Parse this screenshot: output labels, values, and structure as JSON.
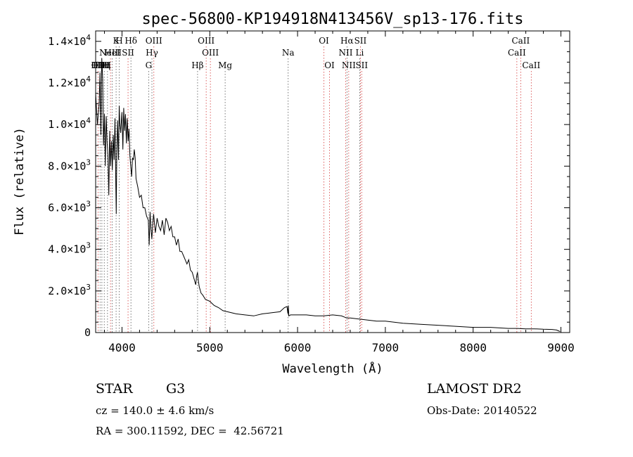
{
  "chart_data": {
    "type": "line",
    "title": "spec-56800-KP194918N413456V_sp13-176.fits",
    "xlabel": "Wavelength (Å)",
    "ylabel": "Flux (relative)",
    "xlim": [
      3700,
      9100
    ],
    "ylim": [
      0,
      14500
    ],
    "x_ticks": [
      4000,
      5000,
      6000,
      7000,
      8000,
      9000
    ],
    "y_ticks": [
      {
        "value": 0,
        "mant": "0",
        "exp": ""
      },
      {
        "value": 2000,
        "mant": "2.0×10",
        "exp": "3"
      },
      {
        "value": 4000,
        "mant": "4.0×10",
        "exp": "3"
      },
      {
        "value": 6000,
        "mant": "6.0×10",
        "exp": "3"
      },
      {
        "value": 8000,
        "mant": "8.0×10",
        "exp": "3"
      },
      {
        "value": 10000,
        "mant": "1.0×10",
        "exp": "4"
      },
      {
        "value": 12000,
        "mant": "1.2×10",
        "exp": "4"
      },
      {
        "value": 14000,
        "mant": "1.4×10",
        "exp": "4"
      }
    ],
    "grid": false,
    "series": [
      {
        "x": [
          3700,
          3720,
          3740,
          3750,
          3760,
          3770,
          3780,
          3790,
          3800,
          3810,
          3820,
          3830,
          3840,
          3850,
          3860,
          3870,
          3880,
          3890,
          3900,
          3910,
          3920,
          3930,
          3935,
          3940,
          3950,
          3960,
          3968,
          3975,
          3985,
          4000,
          4010,
          4020,
          4030,
          4040,
          4050,
          4060,
          4070,
          4080,
          4090,
          4100,
          4110,
          4120,
          4130,
          4140,
          4150,
          4160,
          4180,
          4200,
          4220,
          4240,
          4260,
          4280,
          4300,
          4310,
          4320,
          4330,
          4340,
          4350,
          4360,
          4380,
          4400,
          4420,
          4440,
          4460,
          4480,
          4500,
          4520,
          4540,
          4560,
          4580,
          4600,
          4620,
          4640,
          4660,
          4680,
          4700,
          4720,
          4740,
          4760,
          4780,
          4800,
          4820,
          4840,
          4850,
          4860,
          4870,
          4880,
          4900,
          4920,
          4950,
          5000,
          5050,
          5100,
          5150,
          5200,
          5300,
          5400,
          5500,
          5600,
          5700,
          5800,
          5850,
          5880,
          5890,
          5895,
          5900,
          5920,
          6000,
          6100,
          6200,
          6300,
          6400,
          6500,
          6560,
          6600,
          6700,
          6800,
          6900,
          7000,
          7200,
          7400,
          7600,
          7800,
          8000,
          8200,
          8400,
          8500,
          8600,
          8700,
          8800,
          8900,
          8950,
          8990
        ],
        "y": [
          11500,
          10000,
          11000,
          12500,
          9500,
          13200,
          12200,
          9000,
          10500,
          8000,
          10400,
          9200,
          8500,
          6600,
          9700,
          8000,
          9200,
          7800,
          9500,
          8300,
          10300,
          7000,
          5700,
          8500,
          10200,
          8300,
          10900,
          10100,
          9600,
          10600,
          8800,
          10800,
          9700,
          10500,
          9100,
          10300,
          9200,
          9800,
          8500,
          8000,
          7500,
          8400,
          8300,
          8800,
          8400,
          7400,
          7000,
          6500,
          6600,
          6000,
          6000,
          5600,
          5400,
          4200,
          5800,
          5000,
          4500,
          5200,
          5700,
          4800,
          5500,
          5100,
          4900,
          5400,
          4700,
          5500,
          5300,
          4900,
          5100,
          4600,
          4600,
          4200,
          4500,
          3900,
          3900,
          3700,
          3500,
          3300,
          3500,
          3000,
          2900,
          2600,
          2300,
          2700,
          2900,
          2500,
          2200,
          1900,
          1800,
          1600,
          1500,
          1300,
          1200,
          1050,
          1000,
          900,
          850,
          800,
          900,
          950,
          1000,
          1200,
          1250,
          900,
          1300,
          800,
          850,
          850,
          850,
          800,
          800,
          850,
          800,
          700,
          700,
          650,
          600,
          550,
          550,
          450,
          400,
          350,
          300,
          250,
          250,
          200,
          200,
          180,
          180,
          160,
          150,
          120,
          50
        ]
      }
    ],
    "lines": [
      {
        "wl": 3727,
        "label": "OII",
        "row": 3,
        "style": "red"
      },
      {
        "wl": 3750,
        "label": "H10",
        "row": 3,
        "style": "black"
      },
      {
        "wl": 3771,
        "label": "H11",
        "row": 3,
        "style": "black"
      },
      {
        "wl": 3798,
        "label": "Hη",
        "row": 3,
        "style": "black"
      },
      {
        "wl": 3835,
        "label": "H",
        "row": 3,
        "style": "black"
      },
      {
        "wl": 3869,
        "label": "NeIII",
        "row": 2,
        "style": "red"
      },
      {
        "wl": 3889,
        "label": "HeI",
        "row": 2,
        "style": "black"
      },
      {
        "wl": 3933,
        "label": "K",
        "row": 1,
        "style": "black"
      },
      {
        "wl": 3968,
        "label": "H",
        "row": 1,
        "style": "black"
      },
      {
        "wl": 4069,
        "label": "SII",
        "row": 2,
        "style": "red"
      },
      {
        "wl": 4102,
        "label": "Hδ",
        "row": 1,
        "style": "black"
      },
      {
        "wl": 4304,
        "label": "G",
        "row": 3,
        "style": "black"
      },
      {
        "wl": 4341,
        "label": "Hγ",
        "row": 2,
        "style": "black"
      },
      {
        "wl": 4363,
        "label": "OIII",
        "row": 1,
        "style": "red"
      },
      {
        "wl": 4861,
        "label": "Hβ",
        "row": 3,
        "style": "black"
      },
      {
        "wl": 4959,
        "label": "OIII",
        "row": 1,
        "style": "red"
      },
      {
        "wl": 5007,
        "label": "OIII",
        "row": 2,
        "style": "red"
      },
      {
        "wl": 5175,
        "label": "Mg",
        "row": 3,
        "style": "black"
      },
      {
        "wl": 5893,
        "label": "Na",
        "row": 2,
        "style": "black"
      },
      {
        "wl": 6300,
        "label": "OI",
        "row": 1,
        "style": "red"
      },
      {
        "wl": 6364,
        "label": "OI",
        "row": 3,
        "style": "red"
      },
      {
        "wl": 6548,
        "label": "NII",
        "row": 2,
        "style": "red"
      },
      {
        "wl": 6563,
        "label": "Hα",
        "row": 1,
        "style": "black"
      },
      {
        "wl": 6583,
        "label": "NII",
        "row": 3,
        "style": "red"
      },
      {
        "wl": 6708,
        "label": "Li",
        "row": 2,
        "style": "black"
      },
      {
        "wl": 6716,
        "label": "SII",
        "row": 1,
        "style": "red"
      },
      {
        "wl": 6731,
        "label": "SII",
        "row": 3,
        "style": "red"
      },
      {
        "wl": 8498,
        "label": "CaII",
        "row": 2,
        "style": "red"
      },
      {
        "wl": 8542,
        "label": "CaII",
        "row": 1,
        "style": "red"
      },
      {
        "wl": 8662,
        "label": "CaII",
        "row": 3,
        "style": "red"
      }
    ]
  },
  "info": {
    "object_class": "STAR",
    "subclass": "G3",
    "survey": "LAMOST DR2",
    "redshift": "cz = 140.0 ± 4.6 km/s",
    "obs_date": "Obs-Date: 20140522",
    "coords": "RA = 300.11592, DEC =  42.56721"
  }
}
